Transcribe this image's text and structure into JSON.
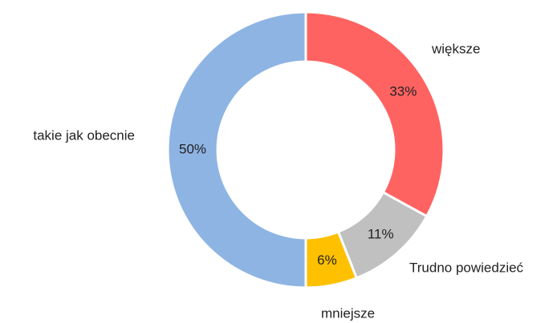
{
  "chart_data": {
    "type": "donut",
    "categories": [
      "większe",
      "Trudno powiedzieć",
      "mniejsze",
      "takie jak obecnie"
    ],
    "values": [
      33,
      11,
      6,
      50
    ],
    "value_labels": [
      "33%",
      "11%",
      "6%",
      "50%"
    ],
    "colors": [
      "#ff6361",
      "#c0c0c0",
      "#ffc000",
      "#8eb4e3"
    ]
  }
}
